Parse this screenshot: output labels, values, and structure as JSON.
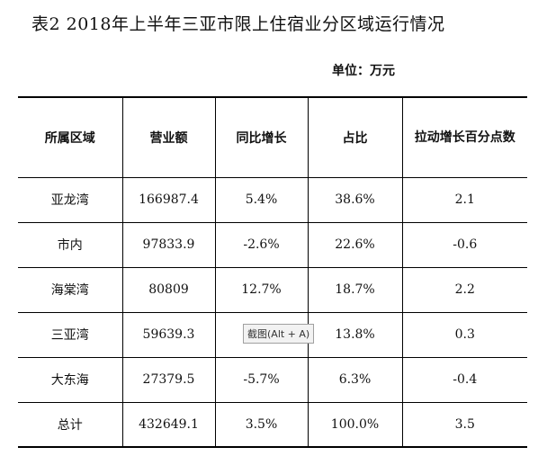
{
  "title": "表2  2018年上半年三亚市限上住宿业分区域运行情况",
  "unit": "单位：万元",
  "table": {
    "headers": [
      "所属区域",
      "营业额",
      "同比增长",
      "占比",
      "拉动增长百分点数"
    ],
    "rows": [
      [
        "亚龙湾",
        "166987.4",
        "5.4%",
        "38.6%",
        "2.1"
      ],
      [
        "市内",
        "97833.9",
        "-2.6%",
        "22.6%",
        "-0.6"
      ],
      [
        "海棠湾",
        "80809",
        "12.7%",
        "18.7%",
        "2.2"
      ],
      [
        "三亚湾",
        "59639.3",
        "",
        "13.8%",
        "0.3"
      ],
      [
        "大东海",
        "27379.5",
        "-5.7%",
        "6.3%",
        "-0.4"
      ],
      [
        "总计",
        "432649.1",
        "3.5%",
        "100.0%",
        "3.5"
      ]
    ]
  },
  "tooltip": "截图(Alt + A)"
}
